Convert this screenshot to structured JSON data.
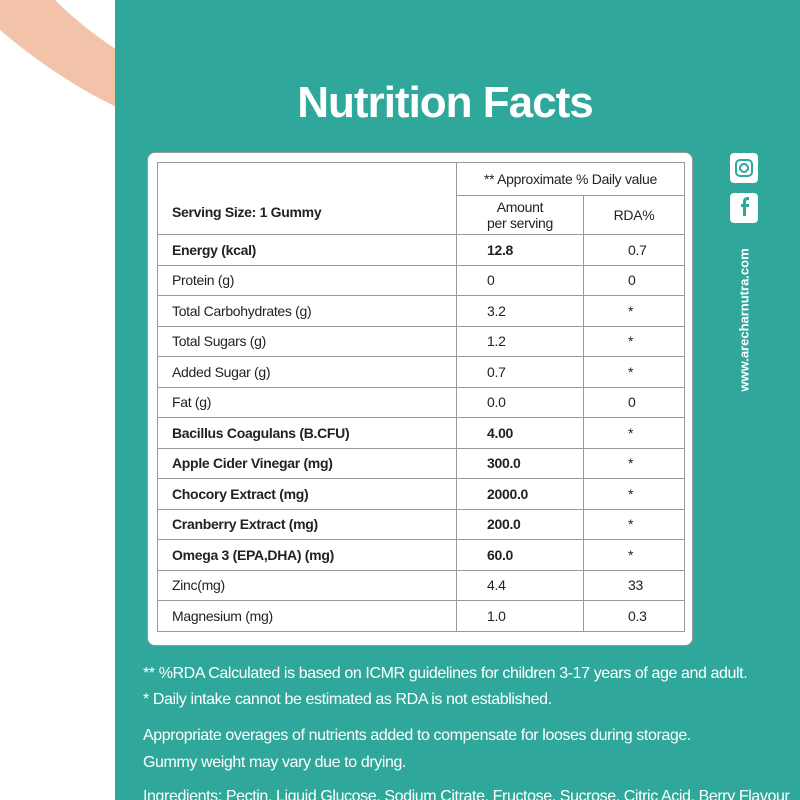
{
  "title": "Nutrition Facts",
  "table": {
    "note_header": "** Approximate % Daily value",
    "serving": "Serving Size: 1 Gummy",
    "amount_header": "Amount\nper serving",
    "rda_header": "RDA%",
    "rows": [
      {
        "nutrient": "Energy (kcal)",
        "amount": "12.8",
        "rda": "0.7",
        "bold": true
      },
      {
        "nutrient": "Protein (g)",
        "amount": "0",
        "rda": "0",
        "bold": false
      },
      {
        "nutrient": "Total Carbohydrates (g)",
        "amount": "3.2",
        "rda": "*",
        "bold": false
      },
      {
        "nutrient": "Total Sugars (g)",
        "amount": "1.2",
        "rda": "*",
        "bold": false
      },
      {
        "nutrient": "Added Sugar (g)",
        "amount": "0.7",
        "rda": "*",
        "bold": false
      },
      {
        "nutrient": "Fat (g)",
        "amount": "0.0",
        "rda": "0",
        "bold": false
      },
      {
        "nutrient": "Bacillus Coagulans (B.CFU)",
        "amount": "4.00",
        "rda": "*",
        "bold": true
      },
      {
        "nutrient": "Apple Cider Vinegar (mg)",
        "amount": "300.0",
        "rda": "*",
        "bold": true
      },
      {
        "nutrient": "Chocory Extract (mg)",
        "amount": "2000.0",
        "rda": "*",
        "bold": true
      },
      {
        "nutrient": "Cranberry Extract (mg)",
        "amount": "200.0",
        "rda": "*",
        "bold": true
      },
      {
        "nutrient": "Omega 3 (EPA,DHA) (mg)",
        "amount": "60.0",
        "rda": "*",
        "bold": true
      },
      {
        "nutrient": "Zinc(mg)",
        "amount": "4.4",
        "rda": "33",
        "bold": false
      },
      {
        "nutrient": "Magnesium (mg)",
        "amount": "1.0",
        "rda": "0.3",
        "bold": false
      }
    ]
  },
  "website": "www.arecharnutra.com",
  "footnotes": [
    "** %RDA Calculated is based on ICMR guidelines for children 3-17 years of age and adult.",
    "* Daily intake cannot be estimated as RDA is not established.",
    "Appropriate overages of nutrients added to compensate for looses during storage.",
    "Gummy weight may vary due to drying.",
    "Ingredients: Pectin, Liquid Glucose, Sodium Citrate, Fructose, Sucrose, Citric Acid, Berry Flavour"
  ]
}
